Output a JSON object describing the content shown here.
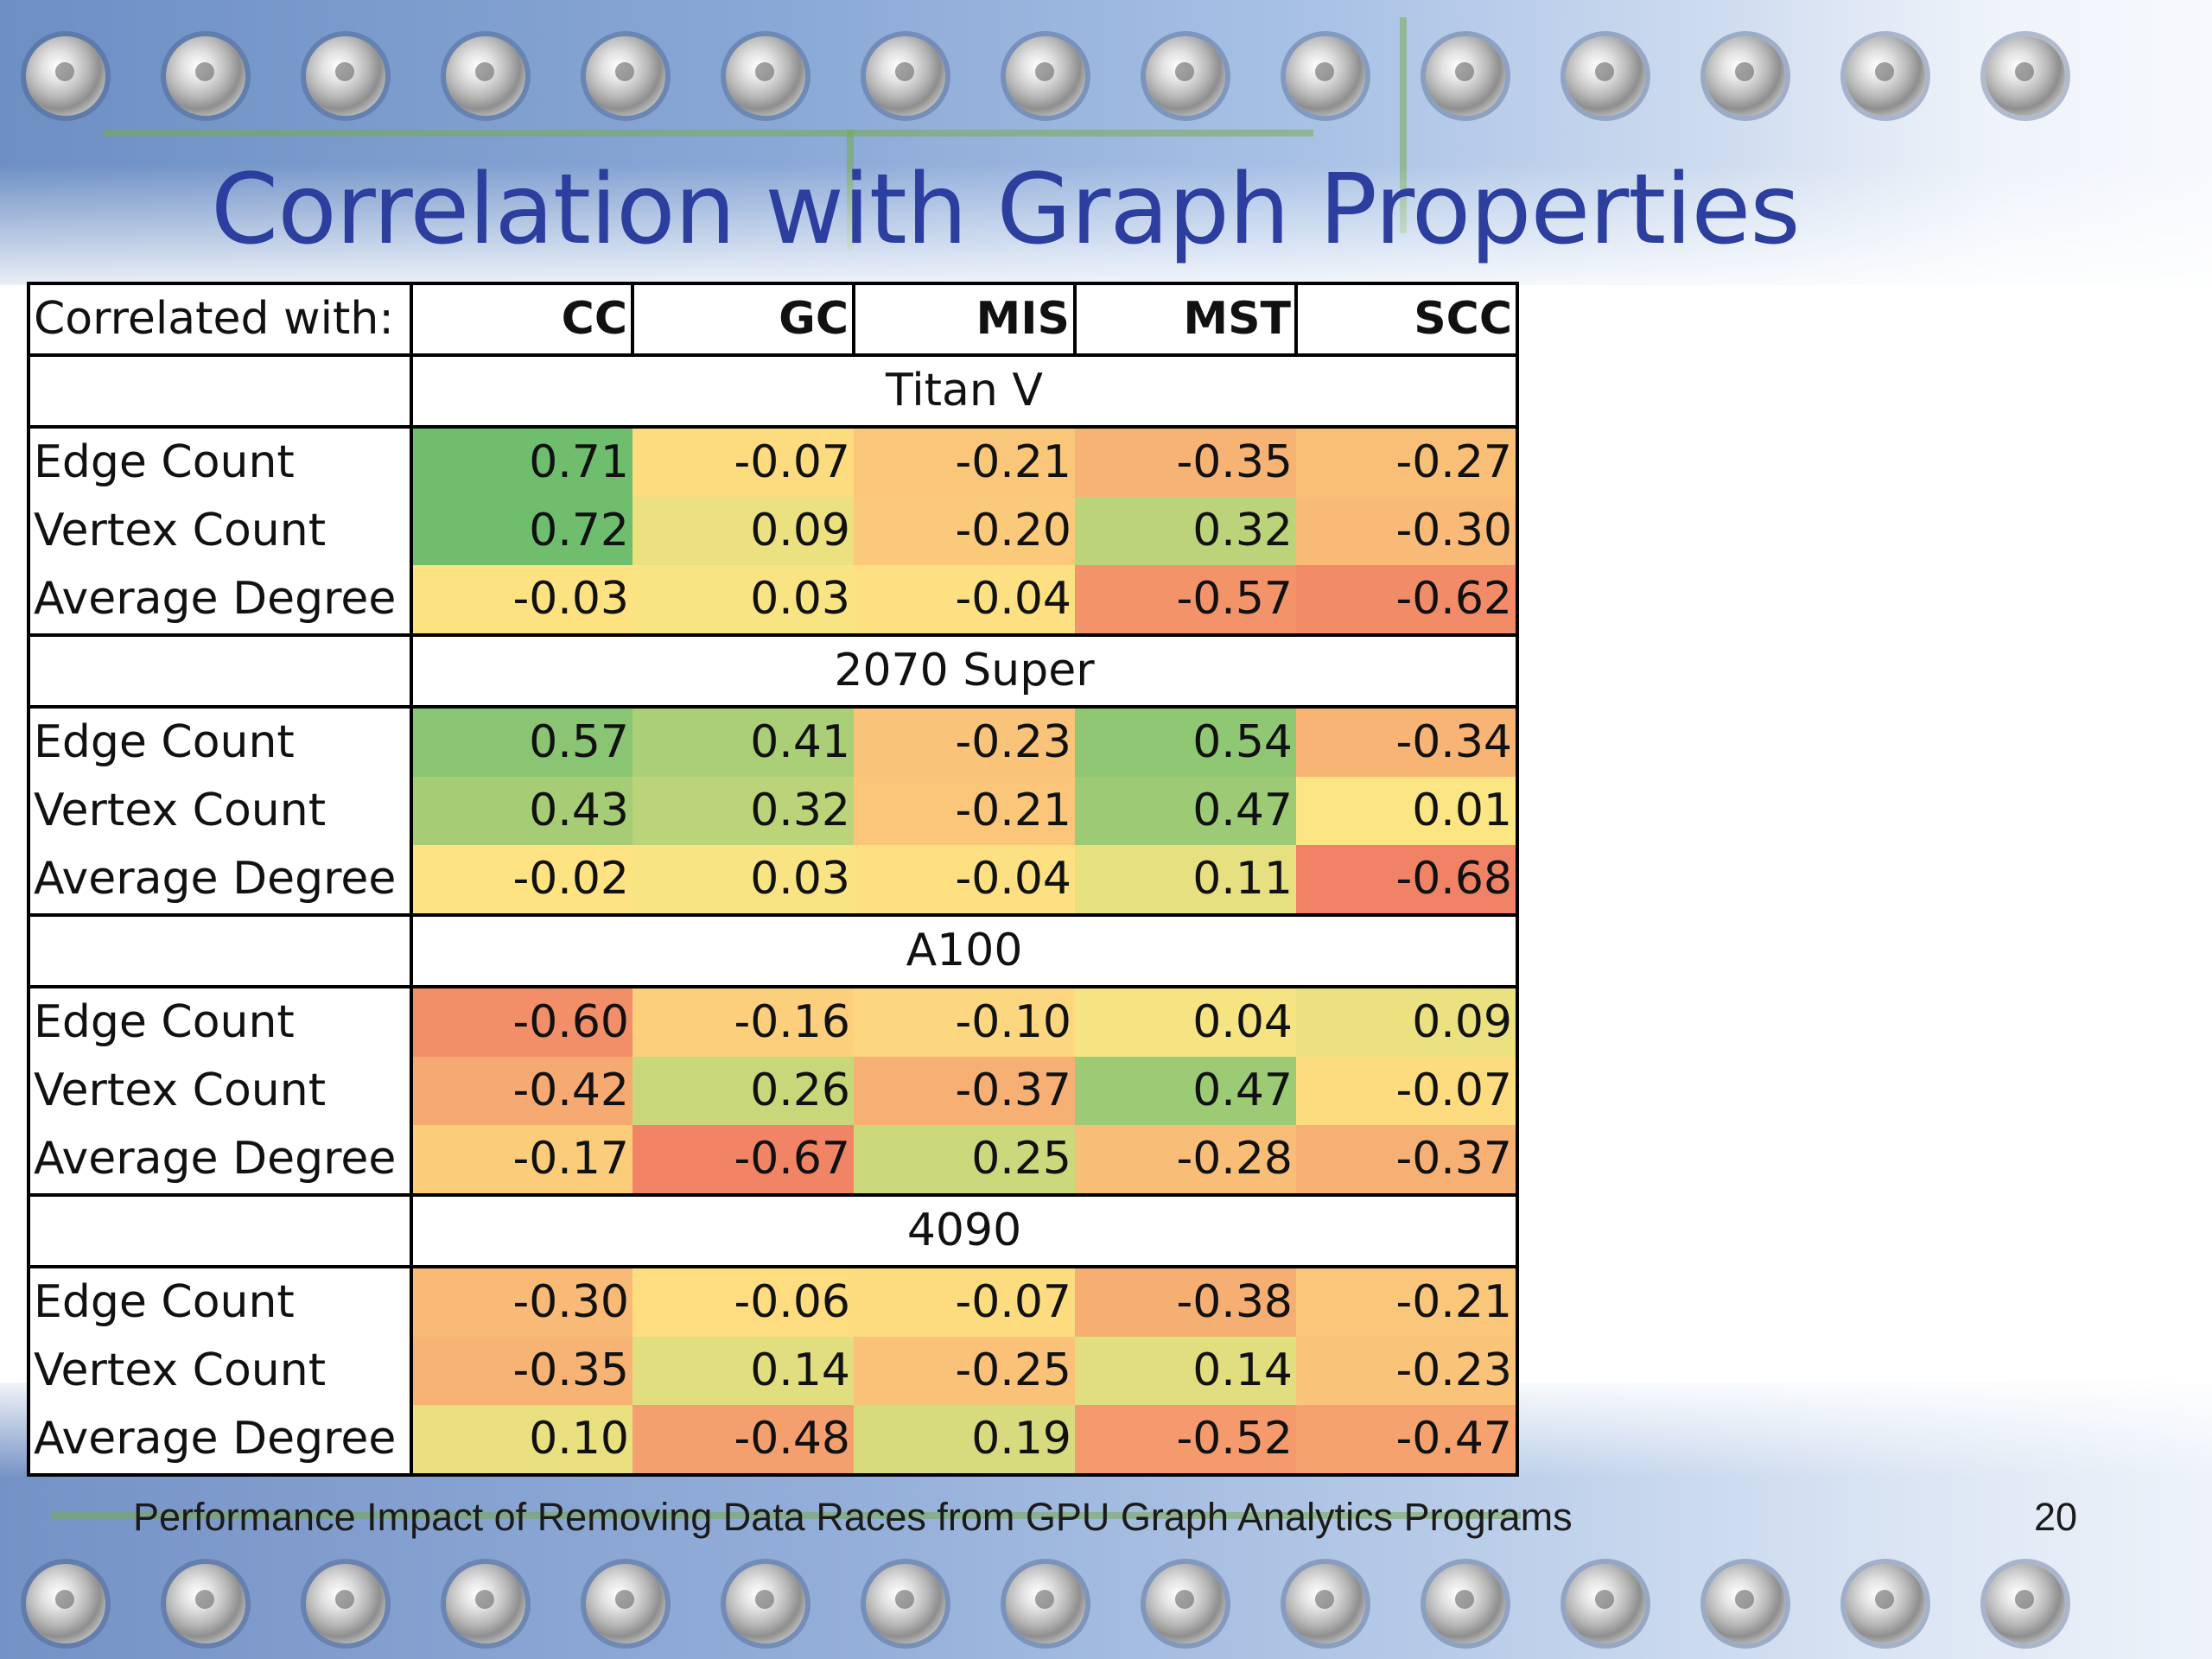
{
  "slide": {
    "title": "Correlation with Graph Properties",
    "footer": "Performance Impact of Removing Data Races from GPU Graph Analytics Programs",
    "page_number": "20"
  },
  "table": {
    "corner_label": "Correlated with:",
    "columns": [
      "CC",
      "GC",
      "MIS",
      "MST",
      "SCC"
    ],
    "groups": [
      {
        "gpu": "Titan V",
        "rows": [
          {
            "label": "Edge Count",
            "values": [
              "0.71",
              "-0.07",
              "-0.21",
              "-0.35",
              "-0.27"
            ]
          },
          {
            "label": "Vertex Count",
            "values": [
              "0.72",
              "0.09",
              "-0.20",
              "0.32",
              "-0.30"
            ]
          },
          {
            "label": "Average Degree",
            "values": [
              "-0.03",
              "0.03",
              "-0.04",
              "-0.57",
              "-0.62"
            ]
          }
        ]
      },
      {
        "gpu": "2070 Super",
        "rows": [
          {
            "label": "Edge Count",
            "values": [
              "0.57",
              "0.41",
              "-0.23",
              "0.54",
              "-0.34"
            ]
          },
          {
            "label": "Vertex Count",
            "values": [
              "0.43",
              "0.32",
              "-0.21",
              "0.47",
              "0.01"
            ]
          },
          {
            "label": "Average Degree",
            "values": [
              "-0.02",
              "0.03",
              "-0.04",
              "0.11",
              "-0.68"
            ]
          }
        ]
      },
      {
        "gpu": "A100",
        "rows": [
          {
            "label": "Edge Count",
            "values": [
              "-0.60",
              "-0.16",
              "-0.10",
              "0.04",
              "0.09"
            ]
          },
          {
            "label": "Vertex Count",
            "values": [
              "-0.42",
              "0.26",
              "-0.37",
              "0.47",
              "-0.07"
            ]
          },
          {
            "label": "Average Degree",
            "values": [
              "-0.17",
              "-0.67",
              "0.25",
              "-0.28",
              "-0.37"
            ]
          }
        ]
      },
      {
        "gpu": "4090",
        "rows": [
          {
            "label": "Edge Count",
            "values": [
              "-0.30",
              "-0.06",
              "-0.07",
              "-0.38",
              "-0.21"
            ]
          },
          {
            "label": "Vertex Count",
            "values": [
              "-0.35",
              "0.14",
              "-0.25",
              "0.14",
              "-0.23"
            ]
          },
          {
            "label": "Average Degree",
            "values": [
              "0.10",
              "-0.48",
              "0.19",
              "-0.52",
              "-0.47"
            ]
          }
        ]
      }
    ]
  }
}
